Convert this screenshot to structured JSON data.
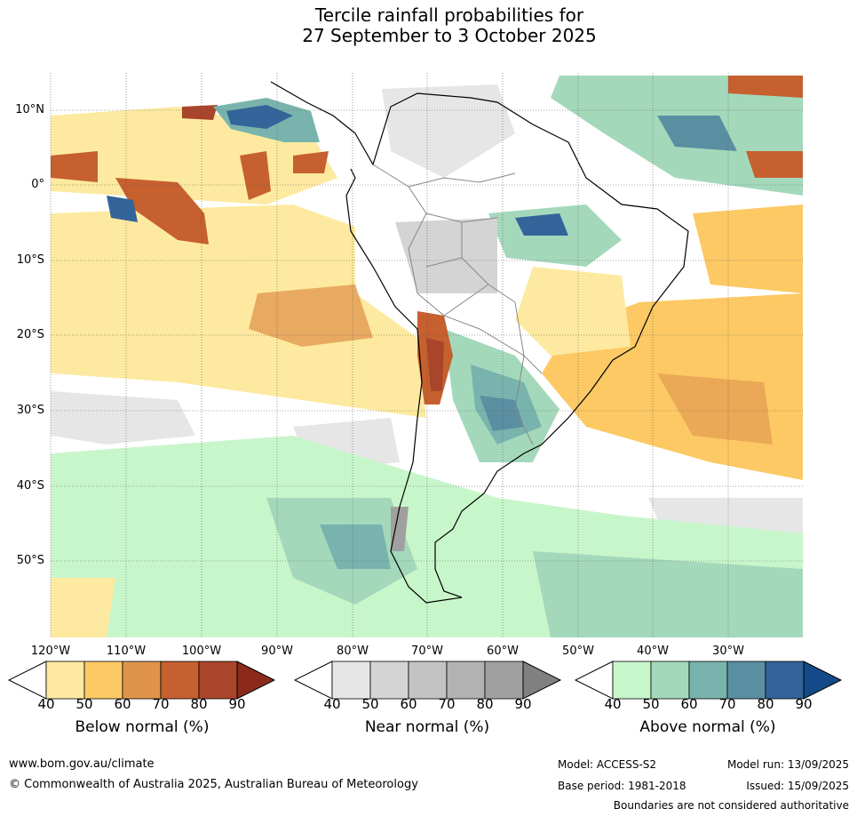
{
  "title": {
    "line1": "Tercile rainfall probabilities for",
    "line2": "27 September to 3 October 2025"
  },
  "map": {
    "lat_labels": [
      "10°N",
      "0°",
      "10°S",
      "20°S",
      "30°S",
      "40°S",
      "50°S"
    ],
    "lon_labels": [
      "120°W",
      "110°W",
      "100°W",
      "90°W",
      "80°W",
      "70°W",
      "60°W",
      "50°W",
      "40°W",
      "30°W"
    ],
    "grid": true
  },
  "colorbars": [
    {
      "name": "Below normal (%)",
      "ticks": [
        "40",
        "50",
        "60",
        "70",
        "80",
        "90"
      ],
      "colors": [
        "#ffffff",
        "#fdeaa0",
        "#fcc964",
        "#e0934c",
        "#c6602f",
        "#a9452a",
        "#8b2a1a"
      ]
    },
    {
      "name": "Near normal (%)",
      "ticks": [
        "40",
        "50",
        "60",
        "70",
        "80",
        "90"
      ],
      "colors": [
        "#ffffff",
        "#e6e6e6",
        "#d4d4d4",
        "#c3c3c3",
        "#b2b2b2",
        "#a0a0a0",
        "#808080"
      ]
    },
    {
      "name": "Above normal (%)",
      "ticks": [
        "40",
        "50",
        "60",
        "70",
        "80",
        "90"
      ],
      "colors": [
        "#ffffff",
        "#c8f6cb",
        "#a4d8bb",
        "#78b4ad",
        "#5a8fa2",
        "#33649a",
        "#134a87"
      ]
    }
  ],
  "footer": {
    "website": "www.bom.gov.au/climate",
    "copyright": "© Commonwealth of Australia 2025, Australian Bureau of Meteorology",
    "model": "Model: ACCESS-S2",
    "model_run": "Model run: 13/09/2025",
    "base_period": "Base period: 1981-2018",
    "issued": "Issued: 15/09/2025",
    "disclaimer": "Boundaries are not considered authoritative"
  }
}
